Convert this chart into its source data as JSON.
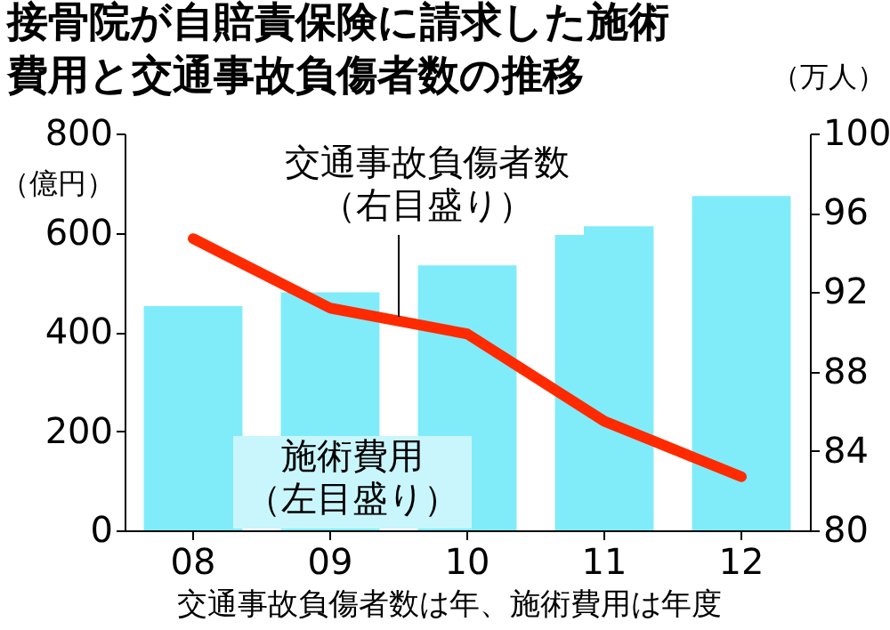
{
  "chart_data": {
    "type": "bar",
    "title": "接骨院が自賠責保険に請求した施術費用と交通事故負傷者数の推移",
    "categories": [
      "08",
      "09",
      "10",
      "11",
      "12"
    ],
    "series": [
      {
        "name": "施術費用（左目盛り）",
        "color": "#80ecfa",
        "values": [
          452,
          480,
          534,
          613,
          674
        ]
      },
      {
        "name": "交通事故負傷者数（右目盛り）",
        "type": "line",
        "axis": "y2",
        "color": "#ff2a00",
        "values": [
          94.7,
          91.2,
          89.9,
          85.5,
          82.7
        ]
      }
    ],
    "ylabel": "（億円）",
    "y2label": "（万人）",
    "ylim": [
      0,
      800
    ],
    "yticks": [
      0,
      200,
      400,
      600,
      800
    ],
    "y2lim": [
      80,
      100
    ],
    "y2ticks": [
      80,
      84,
      88,
      92,
      96,
      100
    ],
    "annotations": [
      "交通事故負傷者数は年、施術費用は年度"
    ],
    "grid": false,
    "legend": false
  }
}
